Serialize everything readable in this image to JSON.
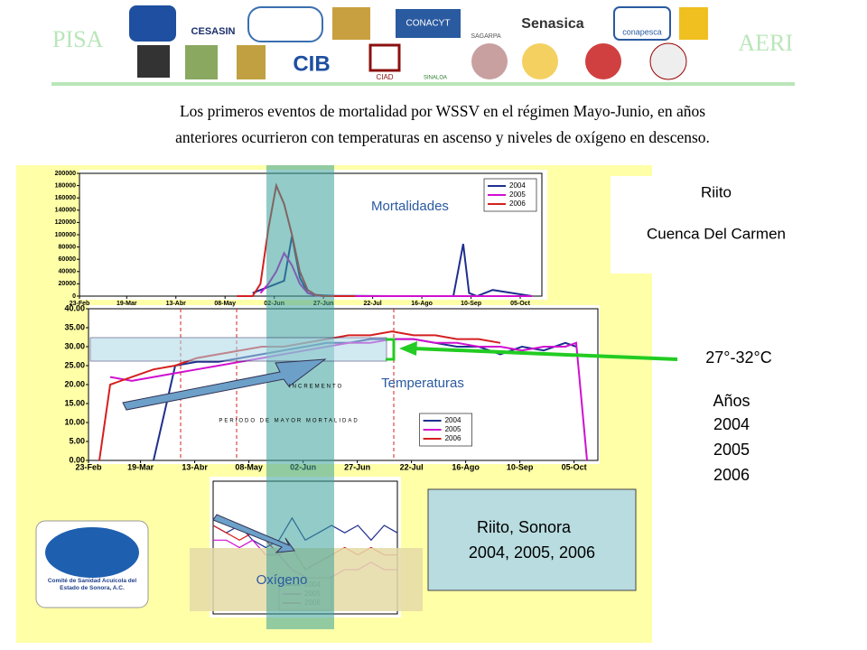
{
  "header": {
    "left_mark": "PISA",
    "right_mark": "AERI",
    "logos": [
      "CESASIN",
      "CONACYT",
      "SAGARPA",
      "Senasica",
      "conapesca",
      "CIAD",
      "SINALOA"
    ],
    "text_line1": "Los primeros eventos de mortalidad por WSSV en el régimen Mayo-Junio, en años",
    "text_line2": "anteriores  ocurrieron con temperaturas en ascenso y niveles de oxígeno en descenso."
  },
  "chart_data": [
    {
      "type": "line",
      "annotation": "Mortalidades",
      "x": [
        80,
        88,
        92,
        96,
        100,
        104,
        108,
        112,
        116,
        120,
        124,
        130,
        140,
        160,
        190,
        195,
        198,
        202,
        210,
        220,
        230
      ],
      "xlim": [
        0,
        235
      ],
      "xticks": [
        {
          "value": 0,
          "label": "23-Feb"
        },
        {
          "value": 24,
          "label": "19-Mar"
        },
        {
          "value": 49,
          "label": "13-Abr"
        },
        {
          "value": 74,
          "label": "08-May"
        },
        {
          "value": 99,
          "label": "02-Jun"
        },
        {
          "value": 124,
          "label": "27-Jun"
        },
        {
          "value": 149,
          "label": "22-Jul"
        },
        {
          "value": 174,
          "label": "16-Ago"
        },
        {
          "value": 199,
          "label": "10-Sep"
        },
        {
          "value": 224,
          "label": "05-Oct"
        }
      ],
      "ylim": [
        0,
        200000
      ],
      "yticks": [
        0,
        20000,
        40000,
        60000,
        80000,
        100000,
        120000,
        140000,
        160000,
        180000,
        200000
      ],
      "legend": "upper right",
      "series": [
        {
          "name": "2004",
          "color": "#1f2f8f",
          "values": [
            null,
            5000,
            10000,
            15000,
            20000,
            25000,
            98000,
            30000,
            5000,
            2000,
            1000,
            500,
            500,
            0,
            0,
            85000,
            5000,
            0,
            10000,
            5000,
            0
          ]
        },
        {
          "name": "2005",
          "color": "#d010d0",
          "values": [
            null,
            null,
            5000,
            20000,
            40000,
            70000,
            50000,
            20000,
            5000,
            1000,
            0,
            0,
            0,
            0,
            0,
            0,
            0,
            0,
            0,
            0,
            0
          ]
        },
        {
          "name": "2006",
          "color": "#d42020",
          "values": [
            0,
            0,
            20000,
            110000,
            180000,
            150000,
            100000,
            40000,
            10000,
            2000,
            0,
            0,
            0,
            null,
            null,
            null,
            null,
            null,
            null,
            null,
            null
          ]
        }
      ]
    },
    {
      "type": "line",
      "annotation": "Temperaturas",
      "notes": [
        "INCREMENTO",
        "PERIODO DE MAYOR MORTALIDAD"
      ],
      "x": [
        0,
        5,
        10,
        20,
        30,
        40,
        50,
        60,
        70,
        80,
        90,
        100,
        110,
        120,
        130,
        140,
        150,
        160,
        170,
        180,
        190,
        200,
        210,
        220,
        225,
        230
      ],
      "xlim": [
        0,
        235
      ],
      "xticks": [
        {
          "value": 0,
          "label": "23-Feb"
        },
        {
          "value": 24,
          "label": "19-Mar"
        },
        {
          "value": 49,
          "label": "13-Abr"
        },
        {
          "value": 74,
          "label": "08-May"
        },
        {
          "value": 99,
          "label": "02-Jun"
        },
        {
          "value": 124,
          "label": "27-Jun"
        },
        {
          "value": 149,
          "label": "22-Jul"
        },
        {
          "value": 174,
          "label": "16-Ago"
        },
        {
          "value": 199,
          "label": "10-Sep"
        },
        {
          "value": 224,
          "label": "05-Oct"
        }
      ],
      "ylim": [
        0,
        40
      ],
      "yticks": [
        {
          "value": 0,
          "label": "0.00"
        },
        {
          "value": 5,
          "label": "5.00"
        },
        {
          "value": 10,
          "label": "10.00"
        },
        {
          "value": 15,
          "label": "15.00"
        },
        {
          "value": 20,
          "label": "20.00"
        },
        {
          "value": 25,
          "label": "25.00"
        },
        {
          "value": 30,
          "label": "30.00"
        },
        {
          "value": 35,
          "label": "35.00"
        },
        {
          "value": 40,
          "label": "40.00"
        }
      ],
      "legend": "lower right",
      "series": [
        {
          "name": "2004",
          "color": "#1f2f8f",
          "values": [
            null,
            null,
            null,
            null,
            0,
            25,
            26,
            26,
            27,
            28,
            29,
            30,
            31,
            31,
            32,
            32,
            32,
            31,
            30,
            30,
            28,
            30,
            29,
            31,
            30,
            null
          ]
        },
        {
          "name": "2005",
          "color": "#d010d0",
          "values": [
            null,
            null,
            22,
            21,
            22,
            23,
            24,
            25,
            26,
            27,
            28,
            29,
            30,
            31,
            31,
            32,
            32,
            31,
            31,
            30,
            30,
            29,
            30,
            30,
            31,
            0
          ]
        },
        {
          "name": "2006",
          "color": "#d42020",
          "values": [
            null,
            0,
            20,
            22,
            24,
            25,
            27,
            28,
            29,
            30,
            30,
            31,
            32,
            33,
            33,
            34,
            33,
            33,
            32,
            32,
            31,
            null,
            null,
            null,
            null,
            null
          ]
        }
      ]
    },
    {
      "type": "line",
      "annotation": "Oxígeno",
      "ylim": [
        0,
        9
      ],
      "legend": "lower center",
      "series": [
        {
          "name": "2004",
          "color": "#1f2f8f",
          "values": [
            6,
            5.5,
            6,
            5,
            4.5,
            5,
            6.5,
            5,
            5.5,
            6,
            5.5,
            6,
            5,
            6,
            5.5
          ]
        },
        {
          "name": "2005",
          "color": "#d010d0",
          "values": [
            5,
            5,
            4.5,
            5,
            4,
            4,
            3,
            2.5,
            2,
            2.5,
            3,
            3,
            3.5,
            3,
            3
          ]
        },
        {
          "name": "2006",
          "color": "#d42020",
          "values": [
            6,
            5.5,
            5,
            5.5,
            5,
            4,
            4.5,
            3,
            3.5,
            4,
            4.5,
            4,
            4.5,
            4,
            4
          ]
        }
      ]
    }
  ],
  "side": {
    "place": "Riito",
    "region": "Cuenca Del Carmen",
    "range": "27°-32°C",
    "years_label": "Años",
    "years": [
      "2004",
      "2005",
      "2006"
    ],
    "box_line1": "Riito, Sonora",
    "box_line2": "2004, 2005, 2006",
    "logo_text": "Comité de Sanidad Acuícola del Estado de Sonora, A.C."
  }
}
